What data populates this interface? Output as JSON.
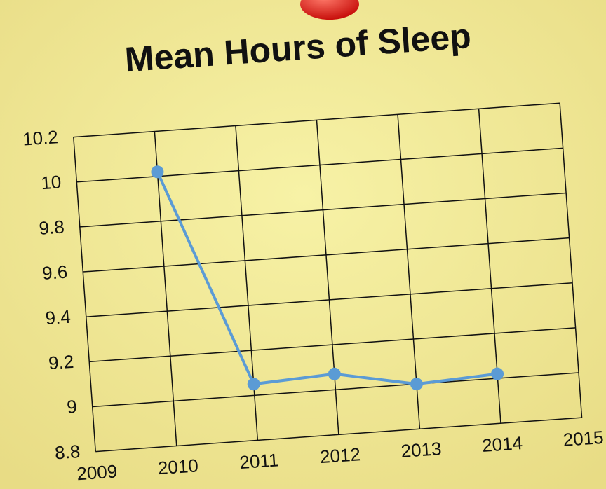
{
  "chart_data": {
    "type": "line",
    "title": "Mean Hours of Sleep",
    "x": [
      2010,
      2011,
      2012,
      2013,
      2014
    ],
    "series": [
      {
        "color": "#5b9bd5",
        "values": [
          10.02,
          9.05,
          9.07,
          9.0,
          9.02
        ]
      }
    ],
    "xlim": [
      2009,
      2015
    ],
    "xticks": [
      2009,
      2010,
      2011,
      2012,
      2013,
      2014,
      2015
    ],
    "ylim": [
      8.8,
      10.2
    ],
    "yticks": [
      8.8,
      9,
      9.2,
      9.4,
      9.6,
      9.8,
      10,
      10.2
    ],
    "grid": true
  }
}
